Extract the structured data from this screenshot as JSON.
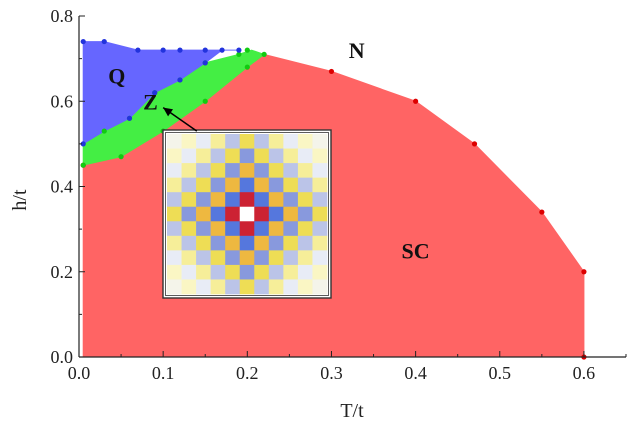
{
  "chart_data": {
    "type": "area",
    "xlabel": "T/t",
    "ylabel": "h/t",
    "xlim": [
      0,
      0.65
    ],
    "ylim": [
      0,
      0.8
    ],
    "xticks": [
      "0.0",
      "0.1",
      "0.2",
      "0.3",
      "0.4",
      "0.5",
      "0.6"
    ],
    "yticks": [
      "0.0",
      "0.2",
      "0.4",
      "0.6",
      "0.8"
    ],
    "colors": {
      "SC": "#ff6464",
      "Z": "#44ee44",
      "Q": "#6666ff",
      "SC_points": "#dd0000",
      "Z_points": "#11cc11",
      "Q_points": "#2233dd"
    },
    "regions": [
      {
        "name": "SC",
        "label": "SC",
        "label_at": [
          0.4,
          0.25
        ],
        "boundary": [
          [
            0.005,
            0.45
          ],
          [
            0.05,
            0.47
          ],
          [
            0.1,
            0.53
          ],
          [
            0.15,
            0.6
          ],
          [
            0.2,
            0.68
          ],
          [
            0.22,
            0.71
          ],
          [
            0.3,
            0.67
          ],
          [
            0.4,
            0.6
          ],
          [
            0.47,
            0.5
          ],
          [
            0.55,
            0.34
          ],
          [
            0.6,
            0.2
          ],
          [
            0.6,
            0.0
          ],
          [
            0.005,
            0.0
          ]
        ]
      },
      {
        "name": "Z",
        "label": "Z",
        "label_at": [
          0.085,
          0.6
        ],
        "boundary": [
          [
            0.005,
            0.45
          ],
          [
            0.05,
            0.47
          ],
          [
            0.1,
            0.53
          ],
          [
            0.15,
            0.6
          ],
          [
            0.2,
            0.68
          ],
          [
            0.22,
            0.71
          ],
          [
            0.205,
            0.72
          ],
          [
            0.19,
            0.71
          ],
          [
            0.15,
            0.69
          ],
          [
            0.12,
            0.65
          ],
          [
            0.09,
            0.62
          ],
          [
            0.06,
            0.56
          ],
          [
            0.03,
            0.53
          ],
          [
            0.005,
            0.5
          ]
        ]
      },
      {
        "name": "Q",
        "label": "Q",
        "label_at": [
          0.045,
          0.66
        ],
        "boundary": [
          [
            0.005,
            0.5
          ],
          [
            0.03,
            0.53
          ],
          [
            0.06,
            0.56
          ],
          [
            0.09,
            0.62
          ],
          [
            0.12,
            0.65
          ],
          [
            0.15,
            0.69
          ],
          [
            0.17,
            0.72
          ],
          [
            0.19,
            0.72
          ],
          [
            0.19,
            0.72
          ],
          [
            0.12,
            0.72
          ],
          [
            0.07,
            0.72
          ],
          [
            0.03,
            0.74
          ],
          [
            0.005,
            0.74
          ]
        ]
      }
    ],
    "points": {
      "SC": [
        [
          0.005,
          0.45
        ],
        [
          0.3,
          0.67
        ],
        [
          0.4,
          0.6
        ],
        [
          0.47,
          0.5
        ],
        [
          0.55,
          0.34
        ],
        [
          0.6,
          0.2
        ],
        [
          0.6,
          0.0
        ]
      ],
      "Z": [
        [
          0.005,
          0.45
        ],
        [
          0.05,
          0.47
        ],
        [
          0.1,
          0.53
        ],
        [
          0.15,
          0.6
        ],
        [
          0.2,
          0.68
        ],
        [
          0.22,
          0.71
        ],
        [
          0.2,
          0.72
        ],
        [
          0.19,
          0.71
        ],
        [
          0.15,
          0.69
        ],
        [
          0.12,
          0.65
        ],
        [
          0.09,
          0.62
        ],
        [
          0.06,
          0.56
        ],
        [
          0.03,
          0.53
        ]
      ],
      "Q": [
        [
          0.005,
          0.5
        ],
        [
          0.005,
          0.74
        ],
        [
          0.03,
          0.74
        ],
        [
          0.07,
          0.72
        ],
        [
          0.1,
          0.72
        ],
        [
          0.12,
          0.72
        ],
        [
          0.15,
          0.72
        ],
        [
          0.17,
          0.72
        ],
        [
          0.19,
          0.72
        ],
        [
          0.12,
          0.65
        ],
        [
          0.15,
          0.69
        ],
        [
          0.09,
          0.62
        ],
        [
          0.06,
          0.56
        ]
      ]
    },
    "extra_labels": [
      {
        "text": "N",
        "at": [
          0.33,
          0.72
        ]
      }
    ],
    "arrow": {
      "from": [
        0.14,
        0.53
      ],
      "to": [
        0.1,
        0.585
      ]
    },
    "inset": {
      "pattern": "checkerboard",
      "size": 11,
      "rings": [
        "#ffffff",
        "#cc2233",
        "#5577dd",
        "#eeb840",
        "#8899dd",
        "#eedd55",
        "#bbc4e8",
        "#f6ee99",
        "#e8ecf6",
        "#faf6c4",
        "#f4f4ea"
      ]
    }
  }
}
